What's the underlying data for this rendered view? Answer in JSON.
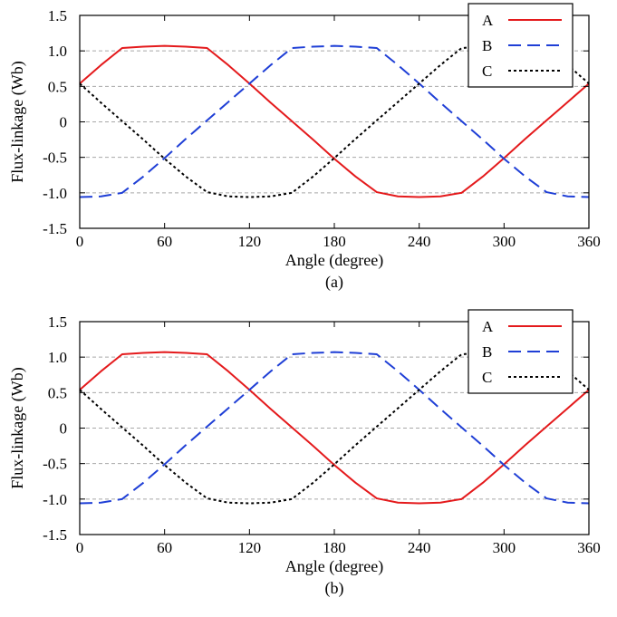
{
  "chart_data": [
    {
      "type": "line",
      "caption": "(a)",
      "xlabel": "Angle (degree)",
      "ylabel": "Flux-linkage (Wb)",
      "xlim": [
        0,
        360
      ],
      "ylim": [
        -1.5,
        1.5
      ],
      "xticks": [
        0,
        60,
        120,
        180,
        240,
        300,
        360
      ],
      "yticks": [
        -1.5,
        -1.0,
        -0.5,
        0,
        0.5,
        1.0,
        1.5
      ],
      "ytick_labels": [
        "-1.5",
        "-1.0",
        "-0.5",
        "0",
        "0.5",
        "1.0",
        "1.5"
      ],
      "xtick_labels": [
        "0",
        "60",
        "120",
        "180",
        "240",
        "300",
        "360"
      ],
      "grid": "horizontal-dashed",
      "legend_position": "top-right",
      "series": [
        {
          "name": "A",
          "color": "#e41a1c",
          "style": "solid",
          "x": [
            0,
            15,
            30,
            45,
            60,
            75,
            90,
            105,
            120,
            135,
            150,
            165,
            180,
            195,
            210,
            225,
            240,
            255,
            270,
            285,
            300,
            315,
            330,
            345,
            360
          ],
          "y": [
            0.54,
            0.8,
            1.04,
            1.06,
            1.07,
            1.06,
            1.04,
            0.8,
            0.54,
            0.27,
            0.01,
            -0.25,
            -0.52,
            -0.77,
            -0.99,
            -1.05,
            -1.06,
            -1.05,
            -1.0,
            -0.77,
            -0.51,
            -0.24,
            0.02,
            0.28,
            0.54
          ]
        },
        {
          "name": "B",
          "color": "#1f3fd6",
          "style": "dashed",
          "x": [
            0,
            15,
            30,
            45,
            60,
            75,
            90,
            105,
            120,
            135,
            150,
            165,
            180,
            195,
            210,
            225,
            240,
            255,
            270,
            285,
            300,
            315,
            330,
            345,
            360
          ],
          "y": [
            -1.06,
            -1.05,
            -1.0,
            -0.77,
            -0.51,
            -0.24,
            0.02,
            0.28,
            0.54,
            0.8,
            1.04,
            1.06,
            1.07,
            1.06,
            1.04,
            0.8,
            0.54,
            0.27,
            0.01,
            -0.25,
            -0.52,
            -0.77,
            -0.99,
            -1.05,
            -1.06
          ]
        },
        {
          "name": "C",
          "color": "#000000",
          "style": "dotted",
          "x": [
            0,
            15,
            30,
            45,
            60,
            75,
            90,
            105,
            120,
            135,
            150,
            165,
            180,
            195,
            210,
            225,
            240,
            255,
            270,
            285,
            300,
            315,
            330,
            345,
            360
          ],
          "y": [
            0.54,
            0.27,
            0.01,
            -0.25,
            -0.52,
            -0.77,
            -0.99,
            -1.05,
            -1.06,
            -1.05,
            -1.0,
            -0.77,
            -0.51,
            -0.24,
            0.02,
            0.28,
            0.54,
            0.8,
            1.04,
            1.06,
            1.07,
            1.06,
            1.04,
            0.8,
            0.54
          ]
        }
      ]
    },
    {
      "type": "line",
      "caption": "(b)",
      "xlabel": "Angle (degree)",
      "ylabel": "Flux-linkage (Wb)",
      "xlim": [
        0,
        360
      ],
      "ylim": [
        -1.5,
        1.5
      ],
      "xticks": [
        0,
        60,
        120,
        180,
        240,
        300,
        360
      ],
      "yticks": [
        -1.5,
        -1.0,
        -0.5,
        0,
        0.5,
        1.0,
        1.5
      ],
      "ytick_labels": [
        "-1.5",
        "-1.0",
        "-0.5",
        "0",
        "0.5",
        "1.0",
        "1.5"
      ],
      "xtick_labels": [
        "0",
        "60",
        "120",
        "180",
        "240",
        "300",
        "360"
      ],
      "grid": "horizontal-dashed",
      "legend_position": "top-right",
      "series": [
        {
          "name": "A",
          "color": "#e41a1c",
          "style": "solid",
          "x": [
            0,
            15,
            30,
            45,
            60,
            75,
            90,
            105,
            120,
            135,
            150,
            165,
            180,
            195,
            210,
            225,
            240,
            255,
            270,
            285,
            300,
            315,
            330,
            345,
            360
          ],
          "y": [
            0.54,
            0.8,
            1.04,
            1.06,
            1.07,
            1.06,
            1.04,
            0.8,
            0.54,
            0.27,
            0.01,
            -0.25,
            -0.52,
            -0.77,
            -0.99,
            -1.05,
            -1.06,
            -1.05,
            -1.0,
            -0.77,
            -0.51,
            -0.24,
            0.02,
            0.28,
            0.54
          ]
        },
        {
          "name": "B",
          "color": "#1f3fd6",
          "style": "dashed",
          "x": [
            0,
            15,
            30,
            45,
            60,
            75,
            90,
            105,
            120,
            135,
            150,
            165,
            180,
            195,
            210,
            225,
            240,
            255,
            270,
            285,
            300,
            315,
            330,
            345,
            360
          ],
          "y": [
            -1.06,
            -1.05,
            -1.0,
            -0.77,
            -0.51,
            -0.24,
            0.02,
            0.28,
            0.54,
            0.8,
            1.04,
            1.06,
            1.07,
            1.06,
            1.04,
            0.8,
            0.54,
            0.27,
            0.01,
            -0.25,
            -0.52,
            -0.77,
            -0.99,
            -1.05,
            -1.06
          ]
        },
        {
          "name": "C",
          "color": "#000000",
          "style": "dotted",
          "x": [
            0,
            15,
            30,
            45,
            60,
            75,
            90,
            105,
            120,
            135,
            150,
            165,
            180,
            195,
            210,
            225,
            240,
            255,
            270,
            285,
            300,
            315,
            330,
            345,
            360
          ],
          "y": [
            0.54,
            0.27,
            0.01,
            -0.25,
            -0.52,
            -0.77,
            -0.99,
            -1.05,
            -1.06,
            -1.05,
            -1.0,
            -0.77,
            -0.51,
            -0.24,
            0.02,
            0.28,
            0.54,
            0.8,
            1.04,
            1.06,
            1.07,
            1.06,
            1.04,
            0.8,
            0.54
          ]
        }
      ]
    }
  ]
}
